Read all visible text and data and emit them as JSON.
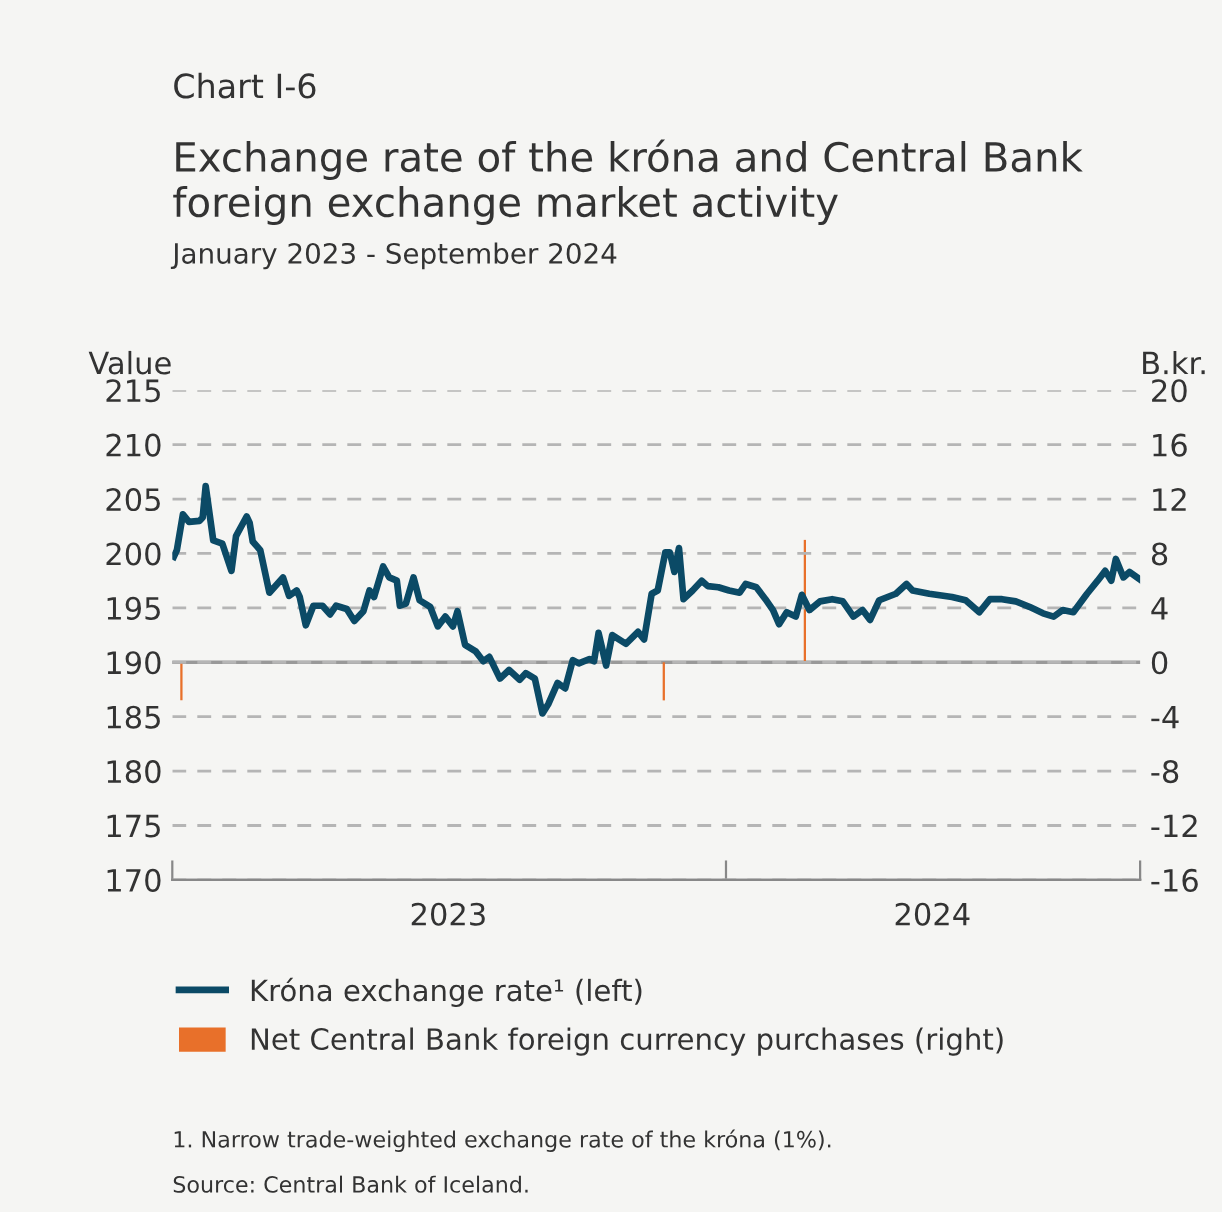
{
  "chart_data": {
    "type": "line",
    "title": "Exchange rate of the króna and Central Bank foreign exchange market activity",
    "subtitle": "January 2023 - September 2024",
    "ylabel": "Value",
    "y2label": "B.kr.",
    "annotations": [
      "Chart I-6",
      "1. Narrow trade-weighted exchange rate of the króna (1%).",
      "Source: Central Bank of Iceland."
    ],
    "xlim": [
      "2023-01-01",
      "2024-09-30"
    ],
    "xticks": [
      {
        "value": "2023-01-01",
        "label": null
      },
      {
        "value": "2023-07-02",
        "label": "2023"
      },
      {
        "value": "2024-01-01",
        "label": null
      },
      {
        "value": "2024-05-16",
        "label": "2024"
      },
      {
        "value": "2024-09-30",
        "label": null
      }
    ],
    "ylim": [
      170,
      215
    ],
    "yticks": [
      170,
      175,
      180,
      185,
      190,
      195,
      200,
      205,
      210,
      215
    ],
    "y2lim": [
      -16,
      20
    ],
    "y2ticks": [
      -16,
      -12,
      -8,
      -4,
      0,
      4,
      8,
      12,
      16,
      20
    ],
    "grid": "y",
    "legend": "bottom",
    "line_style": "solid",
    "marker": "none",
    "ref_lines": [
      {
        "axis": "y2",
        "value": 0,
        "color": "#999999",
        "line_style": "solid"
      }
    ],
    "series": [
      {
        "name": "Króna exchange rate¹ (left)",
        "color": "#0b4a66",
        "x": [
          "2023-01-02",
          "2023-01-04",
          "2023-01-08",
          "2023-01-12",
          "2023-01-19",
          "2023-01-21",
          "2023-01-23",
          "2023-01-28",
          "2023-02-03",
          "2023-02-09",
          "2023-02-12",
          "2023-02-19",
          "2023-02-21",
          "2023-02-23",
          "2023-02-28",
          "2023-03-06",
          "2023-03-15",
          "2023-03-19",
          "2023-03-24",
          "2023-03-26",
          "2023-03-30",
          "2023-04-04",
          "2023-04-10",
          "2023-04-15",
          "2023-04-19",
          "2023-04-26",
          "2023-05-01",
          "2023-05-07",
          "2023-05-11",
          "2023-05-14",
          "2023-05-20",
          "2023-05-24",
          "2023-05-29",
          "2023-05-31",
          "2023-06-04",
          "2023-06-09",
          "2023-06-13",
          "2023-06-20",
          "2023-06-25",
          "2023-06-30",
          "2023-07-05",
          "2023-07-08",
          "2023-07-13",
          "2023-07-20",
          "2023-07-25",
          "2023-07-29",
          "2023-08-05",
          "2023-08-11",
          "2023-08-18",
          "2023-08-22",
          "2023-08-28",
          "2023-09-02",
          "2023-09-06",
          "2023-09-12",
          "2023-09-17",
          "2023-09-22",
          "2023-09-26",
          "2023-10-03",
          "2023-10-06",
          "2023-10-09",
          "2023-10-14",
          "2023-10-18",
          "2023-10-27",
          "2023-11-04",
          "2023-11-08",
          "2023-11-13",
          "2023-11-17",
          "2023-11-22",
          "2023-11-25",
          "2023-11-28",
          "2023-12-01",
          "2023-12-04",
          "2023-12-10",
          "2023-12-16",
          "2023-12-20",
          "2023-12-27",
          "2024-01-03",
          "2024-01-10",
          "2024-01-14",
          "2024-01-21",
          "2024-01-27",
          "2024-02-01",
          "2024-02-05",
          "2024-02-10",
          "2024-02-16",
          "2024-02-20",
          "2024-02-25",
          "2024-03-03",
          "2024-03-11",
          "2024-03-18",
          "2024-03-25",
          "2024-03-31",
          "2024-04-05",
          "2024-04-11",
          "2024-04-22",
          "2024-04-29",
          "2024-05-03",
          "2024-05-14",
          "2024-05-29",
          "2024-06-07",
          "2024-06-16",
          "2024-06-23",
          "2024-07-01",
          "2024-07-10",
          "2024-07-19",
          "2024-07-28",
          "2024-08-04",
          "2024-08-10",
          "2024-08-17",
          "2024-08-26",
          "2024-09-02",
          "2024-09-07",
          "2024-09-11",
          "2024-09-14",
          "2024-09-19",
          "2024-09-23",
          "2024-09-30"
        ],
        "values": [
          199.7,
          200.3,
          203.6,
          202.9,
          203.0,
          203.3,
          206.2,
          201.2,
          200.9,
          198.4,
          201.6,
          203.4,
          202.8,
          201.1,
          200.3,
          196.4,
          197.8,
          196.1,
          196.6,
          196.0,
          193.4,
          195.2,
          195.2,
          194.4,
          195.2,
          194.9,
          193.8,
          194.7,
          196.6,
          196.0,
          198.8,
          197.8,
          197.5,
          195.2,
          195.4,
          197.8,
          195.7,
          195.1,
          193.3,
          194.2,
          193.3,
          194.7,
          191.6,
          191.0,
          190.1,
          190.5,
          188.5,
          189.3,
          188.4,
          189.0,
          188.5,
          185.3,
          186.2,
          188.1,
          187.6,
          190.2,
          189.9,
          190.3,
          190.1,
          192.7,
          189.7,
          192.5,
          191.7,
          192.8,
          192.1,
          196.3,
          196.6,
          200.1,
          200.1,
          198.3,
          200.5,
          195.8,
          196.6,
          197.5,
          197.0,
          196.9,
          196.6,
          196.4,
          197.2,
          196.9,
          195.8,
          194.8,
          193.5,
          194.6,
          194.2,
          196.2,
          194.8,
          195.6,
          195.8,
          195.6,
          194.2,
          194.8,
          193.9,
          195.7,
          196.3,
          197.2,
          196.6,
          196.3,
          196.0,
          195.7,
          194.6,
          195.8,
          195.8,
          195.6,
          195.1,
          194.5,
          194.2,
          194.8,
          194.6,
          196.3,
          197.5,
          198.4,
          197.5,
          199.5,
          197.8,
          198.3,
          197.6
        ]
      },
      {
        "name": "Net Central Bank foreign currency purchases (right)",
        "type": "bar",
        "axis": "y2",
        "color": "#e8702a",
        "x": [
          "2023-01-07",
          "2023-11-21",
          "2024-02-22"
        ],
        "values": [
          -2.8,
          -2.8,
          9.0
        ]
      }
    ]
  }
}
